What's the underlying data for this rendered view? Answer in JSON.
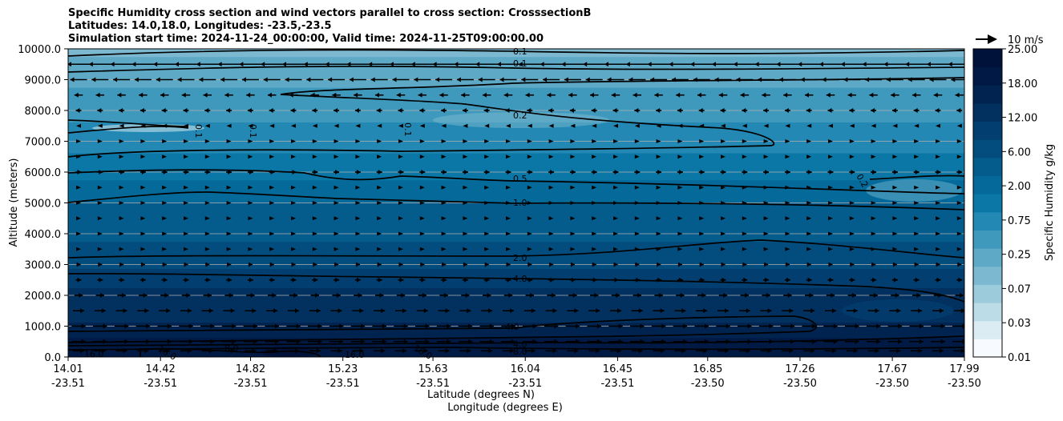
{
  "title": {
    "line1": "Specific Humidity cross section and wind vectors parallel to cross section: CrosssectionB",
    "line2": "Latitudes: 14.0,18.0, Longitudes: -23.5,-23.5",
    "line3": "Simulation start time: 2024-11-24_00:00:00, Valid time: 2024-11-25T09:00:00.00"
  },
  "colors": {
    "fill_palette": [
      "#f7fbff",
      "#dbecf3",
      "#bcdde8",
      "#9ccbdc",
      "#7cb9d0",
      "#5ea9c6",
      "#3f99bd",
      "#2388b3",
      "#0a77a6",
      "#056a9a",
      "#045c8d",
      "#034d7e",
      "#023f70",
      "#02315f",
      "#01234f",
      "#011a45",
      "#00123a"
    ]
  },
  "chart_data": {
    "type": "heatmap",
    "xlabel": "Latitude (degrees N)",
    "xlabel2": "Longitude (degrees E)",
    "ylabel": "Altitude (meters)",
    "ylim": [
      0,
      10000
    ],
    "xlim": [
      14.01,
      17.99
    ],
    "x_ticks": [
      {
        "lat": "14.01",
        "lon": "-23.51",
        "value": 14.01
      },
      {
        "lat": "14.42",
        "lon": "-23.51",
        "value": 14.42
      },
      {
        "lat": "14.82",
        "lon": "-23.51",
        "value": 14.82
      },
      {
        "lat": "15.23",
        "lon": "-23.51",
        "value": 15.23
      },
      {
        "lat": "15.63",
        "lon": "-23.51",
        "value": 15.63
      },
      {
        "lat": "16.04",
        "lon": "-23.51",
        "value": 16.04
      },
      {
        "lat": "16.45",
        "lon": "-23.51",
        "value": 16.45
      },
      {
        "lat": "16.85",
        "lon": "-23.50",
        "value": 16.85
      },
      {
        "lat": "17.26",
        "lon": "-23.50",
        "value": 17.26
      },
      {
        "lat": "17.67",
        "lon": "-23.50",
        "value": 17.67
      },
      {
        "lat": "17.99",
        "lon": "-23.50",
        "value": 17.99
      }
    ],
    "y_ticks": [
      "0.0",
      "1000.0",
      "2000.0",
      "3000.0",
      "4000.0",
      "5000.0",
      "6000.0",
      "7000.0",
      "8000.0",
      "9000.0",
      "10000.0"
    ],
    "grid": "horizontal",
    "colorbar": {
      "label": "Specific Humidity g/kg",
      "ticks": [
        "0.01",
        "0.03",
        "0.07",
        "0.25",
        "0.75",
        "2.00",
        "6.00",
        "12.00",
        "18.00",
        "25.00"
      ]
    },
    "quiver_key": "10 m/s",
    "humidity_profile": [
      {
        "altitude": 0,
        "value": 18.0
      },
      {
        "altitude": 300,
        "value": 16.0
      },
      {
        "altitude": 800,
        "value": 8.0
      },
      {
        "altitude": 1500,
        "value": 6.0
      },
      {
        "altitude": 2500,
        "value": 4.0
      },
      {
        "altitude": 3200,
        "value": 2.0
      },
      {
        "altitude": 5000,
        "value": 1.0
      },
      {
        "altitude": 6000,
        "value": 0.5
      },
      {
        "altitude": 8000,
        "value": 0.2
      },
      {
        "altitude": 9500,
        "value": 0.1
      },
      {
        "altitude": 10000,
        "value": 0.07
      }
    ],
    "contour_labels": [
      "0.1",
      "0.1",
      "0.1",
      "0.1",
      "0.1",
      "0.2",
      "0.2",
      "0.5",
      "1.0",
      "2.0",
      "4.0",
      "4.0",
      "4.0",
      "8.0",
      "16.0",
      "16.0",
      "16.0",
      "16.0",
      "8.0"
    ],
    "wind": [
      {
        "altitude": 9500,
        "direction": "west",
        "speed": 8
      },
      {
        "altitude": 9000,
        "direction": "west",
        "speed": 6
      },
      {
        "altitude": 8500,
        "direction": "west",
        "speed": 3
      },
      {
        "altitude": 8000,
        "direction": "west",
        "speed": 2
      },
      {
        "altitude": 7500,
        "direction": "west",
        "speed": 1
      },
      {
        "altitude": 7000,
        "direction": "east",
        "speed": 1
      },
      {
        "altitude": 6500,
        "direction": "east",
        "speed": 1
      },
      {
        "altitude": 6000,
        "direction": "east",
        "speed": 2
      },
      {
        "altitude": 5500,
        "direction": "east",
        "speed": 1
      },
      {
        "altitude": 5000,
        "direction": "east",
        "speed": 1
      },
      {
        "altitude": 4500,
        "direction": "east",
        "speed": 0.5
      },
      {
        "altitude": 4000,
        "direction": "east",
        "speed": 0.5
      },
      {
        "altitude": 3500,
        "direction": "east",
        "speed": 1
      },
      {
        "altitude": 3000,
        "direction": "east",
        "speed": 1.5
      },
      {
        "altitude": 2500,
        "direction": "east",
        "speed": 2
      },
      {
        "altitude": 2000,
        "direction": "east",
        "speed": 3
      },
      {
        "altitude": 1500,
        "direction": "east",
        "speed": 4
      },
      {
        "altitude": 1000,
        "direction": "east",
        "speed": 5
      },
      {
        "altitude": 500,
        "direction": "east",
        "speed": 5
      },
      {
        "altitude": 200,
        "direction": "east",
        "speed": 4
      }
    ]
  }
}
